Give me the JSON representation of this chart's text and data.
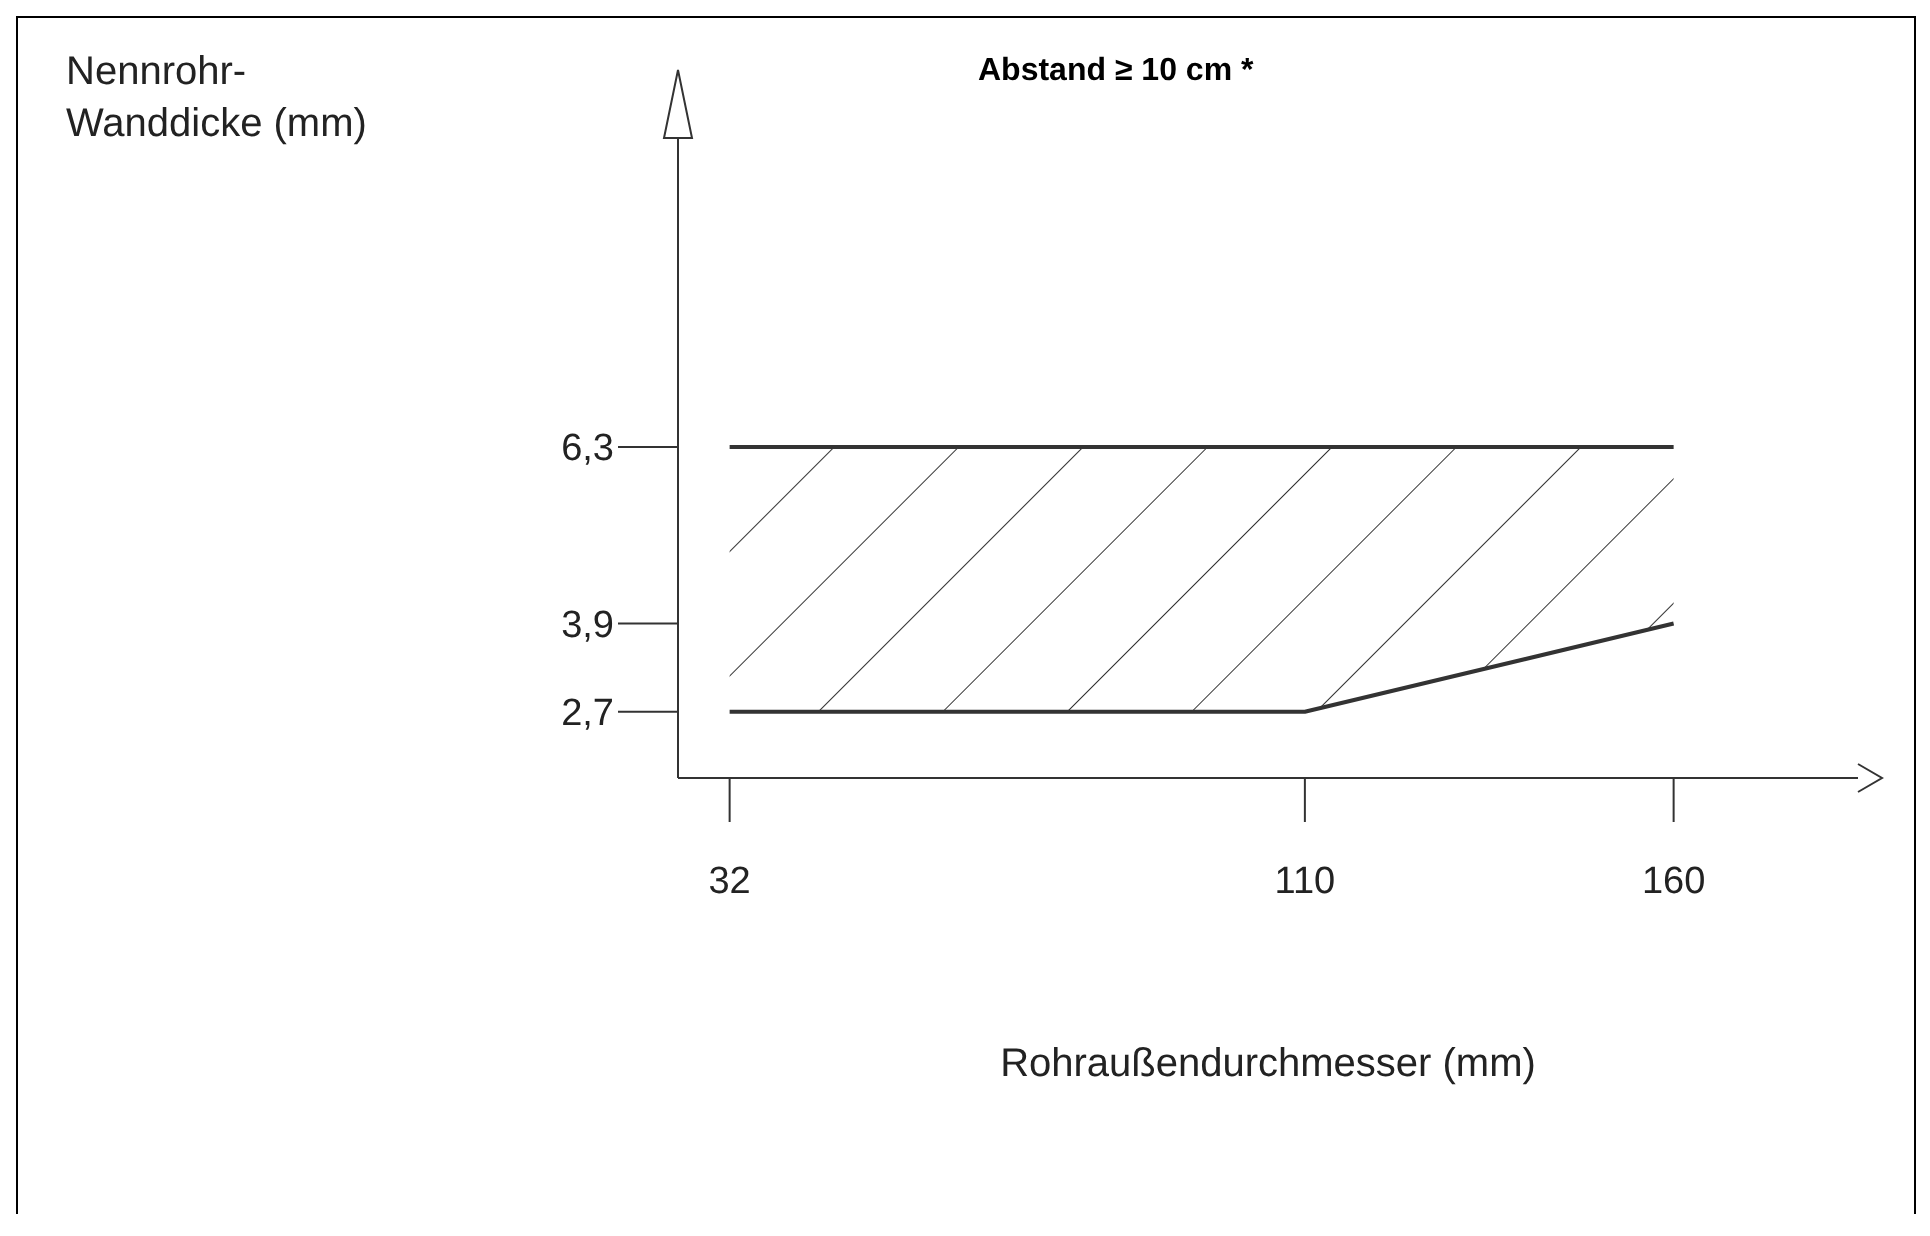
{
  "chart_data": {
    "type": "area",
    "ylabel": "Nennrohr-Wanddicke (mm)",
    "xlabel": "Rohraußendurchmesser (mm)",
    "annotations": [
      "Abstand ≥ 10 cm *"
    ],
    "x": [
      32,
      110,
      160
    ],
    "stacked": true,
    "series": [
      {
        "color": "#333333",
        "values": [
          2.7,
          2.7,
          3.9
        ]
      },
      {
        "color": "#333333",
        "values": [
          3.6,
          3.6,
          2.4
        ]
      }
    ],
    "xlim": [
      25,
      185
    ],
    "xticks": [
      32,
      110,
      160
    ],
    "ylim": [
      1.8,
      10.5
    ],
    "yticks": [
      {
        "value": 2.7,
        "label": "2,7"
      },
      {
        "value": 3.9,
        "label": "3,9"
      },
      {
        "value": 6.3,
        "label": "6,3"
      }
    ],
    "grid": false,
    "legend": false
  }
}
